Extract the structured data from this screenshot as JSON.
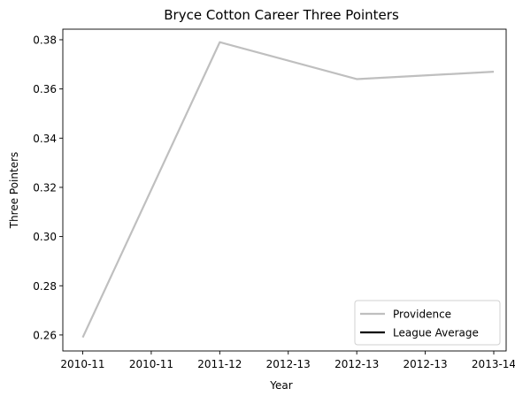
{
  "chart_data": {
    "type": "line",
    "title": "Bryce Cotton Career Three Pointers",
    "xlabel": "Year",
    "ylabel": "Three Pointers",
    "x_tick_labels": [
      "2010-11",
      "2010-11",
      "2011-12",
      "2012-13",
      "2012-13",
      "2012-13",
      "2013-14"
    ],
    "y_ticks": [
      0.26,
      0.28,
      0.3,
      0.32,
      0.34,
      0.36,
      0.38
    ],
    "ylim": [
      0.2535,
      0.3843
    ],
    "legend_position": "lower-right",
    "grid": false,
    "series": [
      {
        "name": "Providence",
        "color": "#bfbfbf",
        "x": [
          "2010-11",
          "2011-12",
          "2012-13",
          "2013-14"
        ],
        "values": [
          0.259,
          0.379,
          0.364,
          0.367
        ]
      },
      {
        "name": "League Average",
        "color": "#000000",
        "x": [],
        "values": []
      }
    ]
  }
}
